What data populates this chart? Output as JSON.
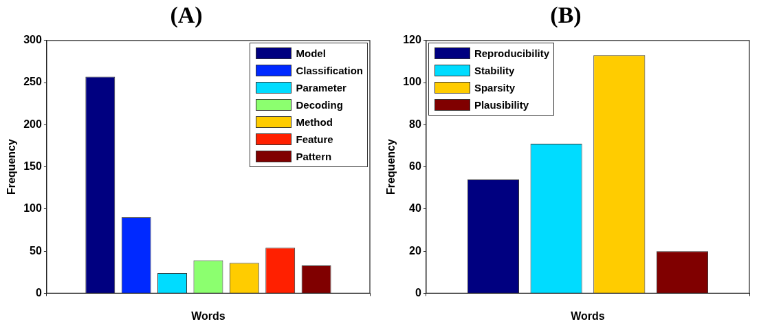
{
  "chart_data": [
    {
      "type": "bar",
      "title": "(A)",
      "xlabel": "Words",
      "ylabel": "Frequency",
      "categories": [
        null
      ],
      "series": [
        {
          "name": "Model",
          "color": "#000080",
          "values": [
            257
          ]
        },
        {
          "name": "Classification",
          "color": "#0029ff",
          "values": [
            90
          ]
        },
        {
          "name": "Parameter",
          "color": "#00dcff",
          "values": [
            24
          ]
        },
        {
          "name": "Decoding",
          "color": "#8cff6f",
          "values": [
            39
          ]
        },
        {
          "name": "Method",
          "color": "#ffcc00",
          "values": [
            36
          ]
        },
        {
          "name": "Feature",
          "color": "#ff2000",
          "values": [
            54
          ]
        },
        {
          "name": "Pattern",
          "color": "#800000",
          "values": [
            33
          ]
        }
      ],
      "ylim": [
        0,
        300
      ],
      "yticks": [
        0,
        50,
        100,
        150,
        200,
        250,
        300
      ],
      "grid": false,
      "legend": "top right"
    },
    {
      "type": "bar",
      "title": "(B)",
      "xlabel": "Words",
      "ylabel": "Frequency",
      "categories": [
        null
      ],
      "series": [
        {
          "name": "Reproducibility",
          "color": "#000080",
          "values": [
            54
          ]
        },
        {
          "name": "Stability",
          "color": "#00dcff",
          "values": [
            71
          ]
        },
        {
          "name": "Sparsity",
          "color": "#ffcc00",
          "values": [
            113
          ]
        },
        {
          "name": "Plausibility",
          "color": "#800000",
          "values": [
            20
          ]
        }
      ],
      "ylim": [
        0,
        120
      ],
      "yticks": [
        0,
        20,
        40,
        60,
        80,
        100,
        120
      ],
      "grid": false,
      "legend": "top left"
    }
  ]
}
